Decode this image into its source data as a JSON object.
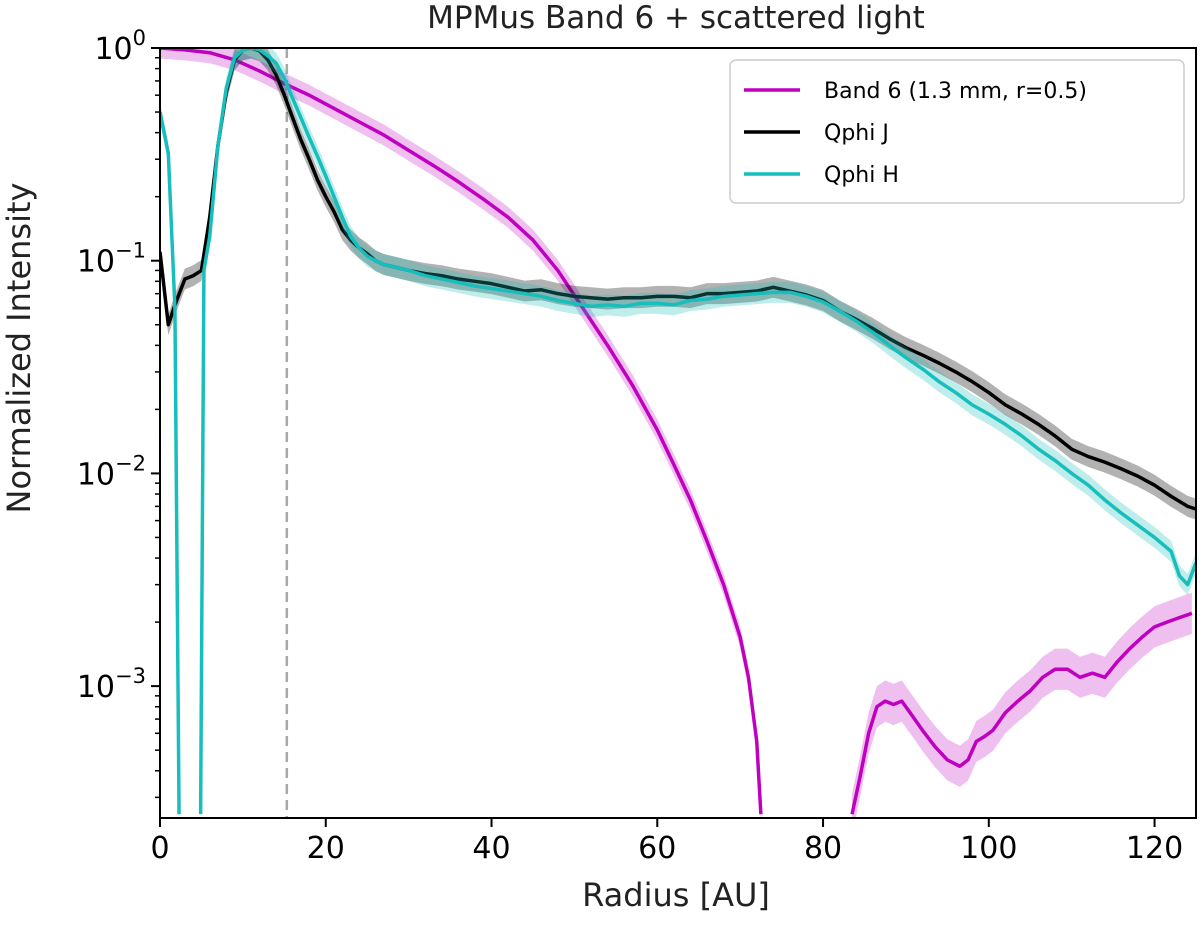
{
  "chart_data": {
    "type": "line",
    "title": "MPMus Band 6 + scattered light",
    "xlabel": "Radius [AU]",
    "ylabel": "Normalized Intensity",
    "xlim": [
      0,
      125
    ],
    "ylim_log10": [
      -3.62,
      0
    ],
    "yscale": "log",
    "x_ticks": [
      0,
      20,
      40,
      60,
      80,
      100,
      120
    ],
    "y_ticks": [
      {
        "base": "10",
        "exp": "0",
        "value": 1
      },
      {
        "base": "10",
        "exp": "−1",
        "value": 0.1
      },
      {
        "base": "10",
        "exp": "−2",
        "value": 0.01
      },
      {
        "base": "10",
        "exp": "−3",
        "value": 0.001
      }
    ],
    "vline": {
      "x": 15.3,
      "color": "#a8a8a8"
    },
    "legend_position": "upper-right",
    "series": [
      {
        "name": "Band 6 (1.3 mm, r=0.5)",
        "color": "#bf00bf",
        "band_opacity": 0.25,
        "segments": [
          {
            "x": [
              0,
              3,
              6,
              9,
              12,
              15,
              18,
              21,
              24,
              27,
              30,
              33,
              36,
              39,
              42,
              45,
              48,
              51,
              54,
              57,
              60,
              62,
              64,
              66,
              68,
              70,
              71,
              72,
              72.5
            ],
            "y": [
              1.0,
              0.98,
              0.95,
              0.88,
              0.78,
              0.68,
              0.6,
              0.52,
              0.45,
              0.39,
              0.33,
              0.28,
              0.235,
              0.195,
              0.16,
              0.125,
              0.09,
              0.06,
              0.04,
              0.026,
              0.016,
              0.011,
              0.0075,
              0.0048,
              0.003,
              0.0017,
              0.0011,
              0.00055,
              0.00025
            ]
          },
          {
            "x": [
              83.5,
              84.5,
              85.5,
              86.5,
              87.5,
              88.5,
              89.5,
              90.5,
              92,
              93.5,
              95,
              96.5,
              97.5,
              98.5,
              99.5,
              100.5,
              102,
              103.5,
              105,
              106.5,
              108,
              109.5,
              111,
              112.5,
              114,
              115.5,
              117,
              118.5,
              120,
              121.5,
              123,
              124.5
            ],
            "y": [
              0.00025,
              0.00038,
              0.0006,
              0.0008,
              0.00085,
              0.00082,
              0.00085,
              0.00075,
              0.00062,
              0.00052,
              0.00045,
              0.00042,
              0.00045,
              0.00055,
              0.00058,
              0.00062,
              0.00075,
              0.00085,
              0.00095,
              0.0011,
              0.0012,
              0.0012,
              0.0011,
              0.00115,
              0.0011,
              0.0013,
              0.0015,
              0.0017,
              0.0019,
              0.002,
              0.0021,
              0.0022
            ],
            "band_factor": 1.25
          }
        ]
      },
      {
        "name": "Qphi J",
        "color": "#000000",
        "band_opacity": 0.3,
        "segments": [
          {
            "x": [
              0,
              1,
              2,
              3,
              4,
              5,
              6,
              7,
              8,
              9,
              10,
              11,
              12,
              13,
              14,
              15,
              16,
              17,
              18,
              19,
              20,
              21,
              22,
              23,
              24,
              25,
              26,
              27,
              28,
              29,
              30,
              32,
              34,
              36,
              38,
              40,
              42,
              44,
              46,
              48,
              50,
              52,
              54,
              56,
              58,
              60,
              62,
              64,
              66,
              68,
              70,
              72,
              74,
              76,
              78,
              80,
              82,
              84,
              86,
              88,
              90,
              92,
              94,
              96,
              98,
              100,
              102,
              104,
              106,
              108,
              110,
              112,
              114,
              116,
              118,
              120,
              122,
              124,
              125
            ],
            "y": [
              0.11,
              0.05,
              0.065,
              0.082,
              0.085,
              0.09,
              0.16,
              0.35,
              0.62,
              0.88,
              0.98,
              1.0,
              0.97,
              0.88,
              0.75,
              0.6,
              0.47,
              0.37,
              0.3,
              0.24,
              0.2,
              0.17,
              0.14,
              0.125,
              0.115,
              0.108,
              0.1,
              0.096,
              0.094,
              0.092,
              0.09,
              0.087,
              0.085,
              0.082,
              0.08,
              0.078,
              0.075,
              0.072,
              0.073,
              0.07,
              0.068,
              0.067,
              0.066,
              0.067,
              0.067,
              0.068,
              0.068,
              0.067,
              0.07,
              0.07,
              0.071,
              0.072,
              0.075,
              0.072,
              0.069,
              0.065,
              0.058,
              0.053,
              0.048,
              0.043,
              0.039,
              0.036,
              0.033,
              0.03,
              0.027,
              0.024,
              0.021,
              0.019,
              0.017,
              0.015,
              0.013,
              0.012,
              0.0113,
              0.0105,
              0.0097,
              0.0088,
              0.0078,
              0.007,
              0.0068
            ]
          }
        ]
      },
      {
        "name": "Qphi H",
        "color": "#17bebb",
        "band_opacity": 0.28,
        "segments": [
          {
            "x": [
              0,
              1,
              1.8,
              2.3
            ],
            "y": [
              0.5,
              0.32,
              0.06,
              0.00025
            ]
          },
          {
            "x": [
              4.9,
              5.3,
              6,
              7,
              8,
              9,
              10,
              11,
              12,
              13,
              14,
              15,
              16,
              17,
              18,
              19,
              20,
              21,
              22,
              23,
              24,
              25,
              26,
              27,
              28,
              30,
              32,
              34,
              36,
              38,
              40,
              42,
              44,
              46,
              48,
              50,
              52,
              54,
              56,
              58,
              60,
              62,
              64,
              66,
              68,
              70,
              72,
              74,
              76,
              78,
              80,
              82,
              84,
              86,
              88,
              90,
              92,
              94,
              96,
              98,
              100,
              102,
              104,
              106,
              108,
              110,
              112,
              114,
              116,
              118,
              120,
              122,
              123,
              124,
              125
            ],
            "y": [
              0.00025,
              0.09,
              0.13,
              0.35,
              0.65,
              0.9,
              0.98,
              1.0,
              0.98,
              0.92,
              0.85,
              0.72,
              0.58,
              0.47,
              0.38,
              0.31,
              0.25,
              0.2,
              0.16,
              0.13,
              0.115,
              0.105,
              0.1,
              0.096,
              0.094,
              0.09,
              0.085,
              0.082,
              0.079,
              0.076,
              0.074,
              0.072,
              0.07,
              0.068,
              0.065,
              0.063,
              0.061,
              0.062,
              0.061,
              0.063,
              0.063,
              0.062,
              0.065,
              0.066,
              0.068,
              0.069,
              0.07,
              0.071,
              0.071,
              0.068,
              0.064,
              0.058,
              0.052,
              0.046,
              0.04,
              0.035,
              0.031,
              0.027,
              0.024,
              0.021,
              0.019,
              0.017,
              0.015,
              0.013,
              0.0115,
              0.01,
              0.0088,
              0.0075,
              0.0065,
              0.0057,
              0.005,
              0.0043,
              0.0033,
              0.003,
              0.0038
            ]
          }
        ]
      }
    ]
  }
}
